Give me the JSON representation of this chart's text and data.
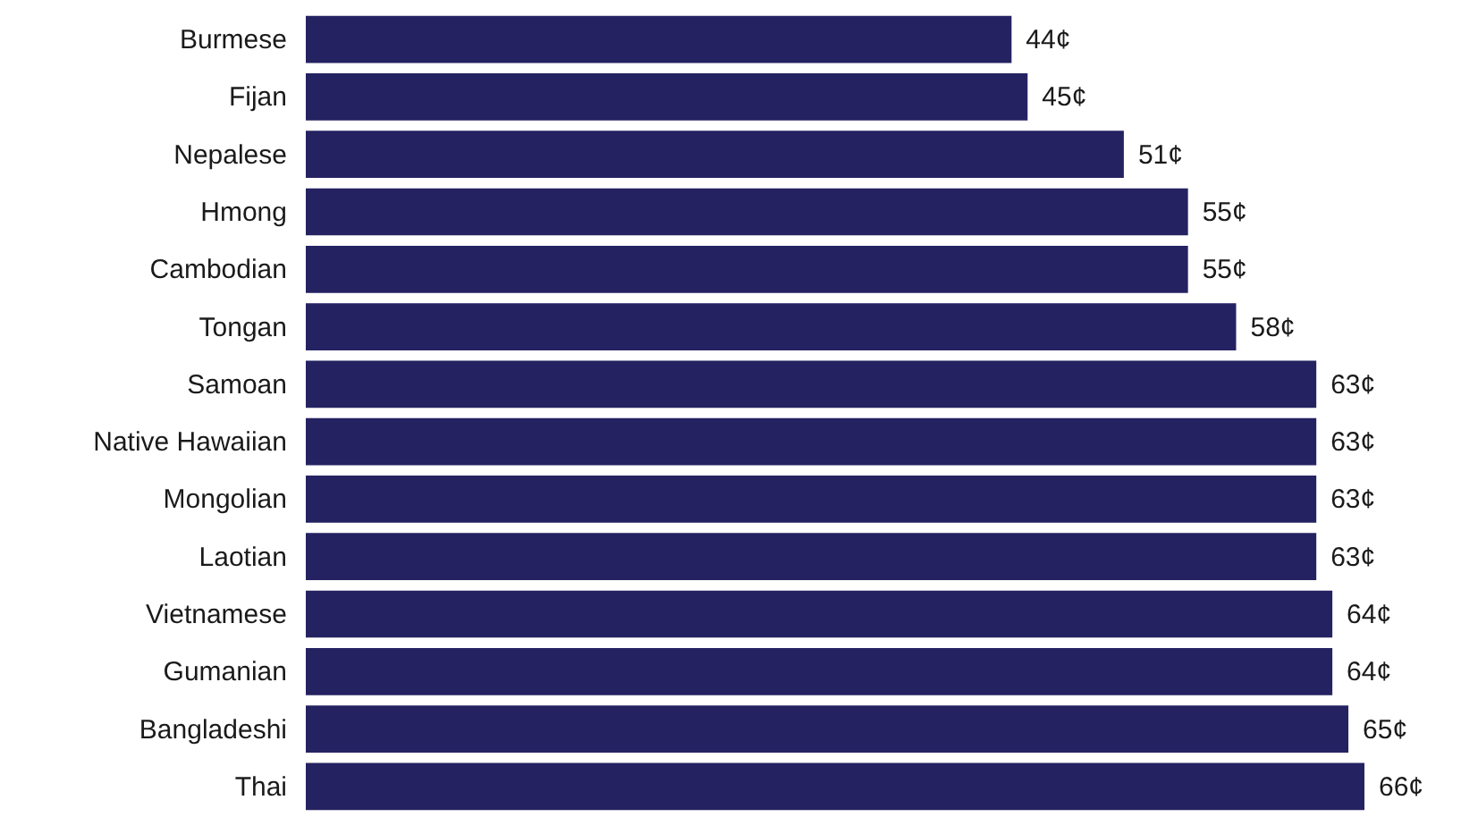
{
  "chart_data": {
    "type": "bar",
    "orientation": "horizontal",
    "categories": [
      "Burmese",
      "Fijan",
      "Nepalese",
      "Hmong",
      "Cambodian",
      "Tongan",
      "Samoan",
      "Native Hawaiian",
      "Mongolian",
      "Laotian",
      "Vietnamese",
      "Gumanian",
      "Bangladeshi",
      "Thai"
    ],
    "values": [
      44,
      45,
      51,
      55,
      55,
      58,
      63,
      63,
      63,
      63,
      64,
      64,
      65,
      66
    ],
    "value_labels": [
      "44¢",
      "45¢",
      "51¢",
      "55¢",
      "55¢",
      "58¢",
      "63¢",
      "63¢",
      "63¢",
      "63¢",
      "64¢",
      "64¢",
      "65¢",
      "66¢"
    ],
    "color": "#252262",
    "tick_labels": "y"
  }
}
